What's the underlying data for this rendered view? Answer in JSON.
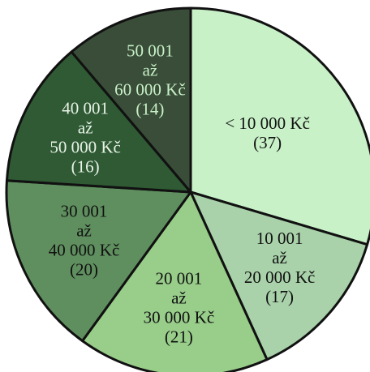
{
  "chart_data": {
    "type": "pie",
    "categories": [
      [
        "< 10 000 Kč"
      ],
      [
        "10 001",
        "až",
        "20 000 Kč"
      ],
      [
        "20 001",
        "až",
        "30 000 Kč"
      ],
      [
        "30 001",
        "až",
        "40 000 Kč"
      ],
      [
        "40 001",
        "až",
        "50 000 Kč"
      ],
      [
        "50 001",
        "až",
        "60 000 Kč"
      ]
    ],
    "values": [
      37,
      17,
      21,
      20,
      16,
      14
    ],
    "value_labels": [
      "(37)",
      "(17)",
      "(21)",
      "(20)",
      "(16)",
      "(14)"
    ],
    "colors": [
      "#c8f1c8",
      "#a9d2aa",
      "#98cd8a",
      "#5f8f5f",
      "#2f5a34",
      "#394d39"
    ],
    "label_colors": [
      "#111111",
      "#111111",
      "#111111",
      "#111111",
      "#e8f3e8",
      "#c8f1c8"
    ]
  }
}
